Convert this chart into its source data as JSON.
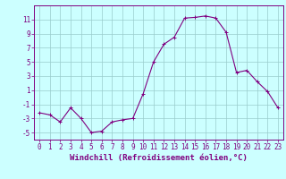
{
  "x": [
    0,
    1,
    2,
    3,
    4,
    5,
    6,
    7,
    8,
    9,
    10,
    11,
    12,
    13,
    14,
    15,
    16,
    17,
    18,
    19,
    20,
    21,
    22,
    23
  ],
  "y": [
    -2.2,
    -2.5,
    -3.5,
    -1.5,
    -3.0,
    -5.0,
    -4.8,
    -3.5,
    -3.2,
    -3.0,
    0.5,
    5.0,
    7.5,
    8.5,
    11.2,
    11.3,
    11.5,
    11.2,
    9.2,
    3.5,
    3.8,
    2.2,
    0.8,
    -1.5
  ],
  "line_color": "#800080",
  "bg_color": "#ccffff",
  "grid_color": "#99cccc",
  "xlabel": "Windchill (Refroidissement éolien,°C)",
  "ylim": [
    -6,
    13
  ],
  "xlim": [
    -0.5,
    23.5
  ],
  "yticks": [
    -5,
    -3,
    -1,
    1,
    3,
    5,
    7,
    9,
    11
  ],
  "xticks": [
    0,
    1,
    2,
    3,
    4,
    5,
    6,
    7,
    8,
    9,
    10,
    11,
    12,
    13,
    14,
    15,
    16,
    17,
    18,
    19,
    20,
    21,
    22,
    23
  ],
  "marker": "+",
  "linewidth": 0.8,
  "markersize": 3,
  "xlabel_fontsize": 6.5,
  "tick_fontsize": 5.5
}
